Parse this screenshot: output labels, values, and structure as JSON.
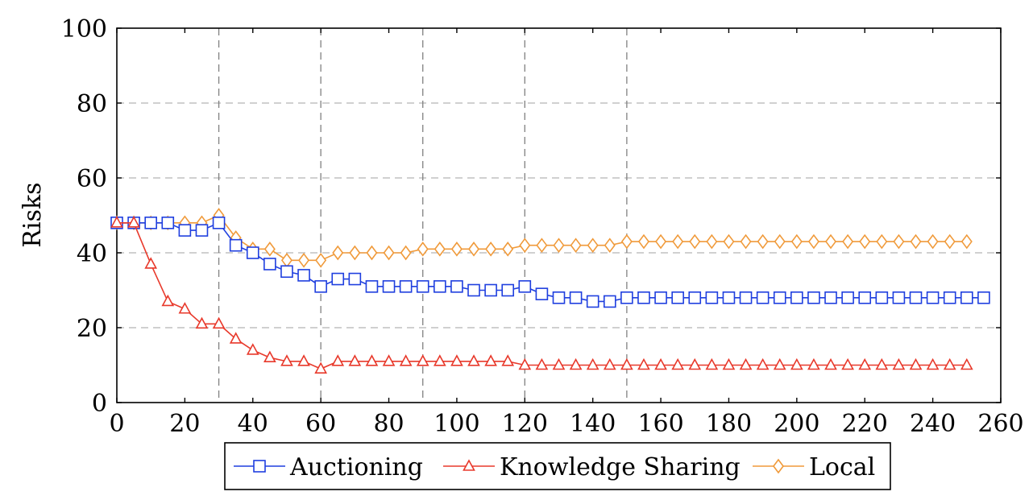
{
  "chart_data": {
    "type": "line",
    "title": "",
    "xlabel": "",
    "ylabel": "Risks",
    "xlim": [
      0,
      260
    ],
    "ylim": [
      0,
      100
    ],
    "xticks": [
      0,
      20,
      40,
      60,
      80,
      100,
      120,
      140,
      160,
      180,
      200,
      220,
      240,
      260
    ],
    "yticks": [
      0,
      20,
      40,
      60,
      80,
      100
    ],
    "grid": "dashed gray, horizontal at every y tick; vertical at x = 30, 60, 90, 120, 150",
    "vlines": [
      30,
      60,
      90,
      120,
      150
    ],
    "legend_position": "bottom-center, below plot",
    "series": [
      {
        "name": "Auctioning",
        "color": "#1f3fdf",
        "marker": "square",
        "x": [
          0,
          5,
          10,
          15,
          20,
          25,
          30,
          35,
          40,
          45,
          50,
          55,
          60,
          65,
          70,
          75,
          80,
          85,
          90,
          95,
          100,
          105,
          110,
          115,
          120,
          125,
          130,
          135,
          140,
          145,
          150,
          155,
          160,
          165,
          170,
          175,
          180,
          185,
          190,
          195,
          200,
          205,
          210,
          215,
          220,
          225,
          230,
          235,
          240,
          245,
          250,
          255
        ],
        "y": [
          48,
          48,
          48,
          48,
          46,
          46,
          48,
          42,
          40,
          37,
          35,
          34,
          31,
          33,
          33,
          31,
          31,
          31,
          31,
          31,
          31,
          30,
          30,
          30,
          31,
          29,
          28,
          28,
          27,
          27,
          28,
          28,
          28,
          28,
          28,
          28,
          28,
          28,
          28,
          28,
          28,
          28,
          28,
          28,
          28,
          28,
          28,
          28,
          28,
          28,
          28,
          28
        ]
      },
      {
        "name": "Knowledge Sharing",
        "color": "#e8392b",
        "marker": "triangle",
        "x": [
          0,
          5,
          10,
          15,
          20,
          25,
          30,
          35,
          40,
          45,
          50,
          55,
          60,
          65,
          70,
          75,
          80,
          85,
          90,
          95,
          100,
          105,
          110,
          115,
          120,
          125,
          130,
          135,
          140,
          145,
          150,
          155,
          160,
          165,
          170,
          175,
          180,
          185,
          190,
          195,
          200,
          205,
          210,
          215,
          220,
          225,
          230,
          235,
          240,
          245,
          250
        ],
        "y": [
          48,
          48,
          37,
          27,
          25,
          21,
          21,
          17,
          14,
          12,
          11,
          11,
          9,
          11,
          11,
          11,
          11,
          11,
          11,
          11,
          11,
          11,
          11,
          11,
          10,
          10,
          10,
          10,
          10,
          10,
          10,
          10,
          10,
          10,
          10,
          10,
          10,
          10,
          10,
          10,
          10,
          10,
          10,
          10,
          10,
          10,
          10,
          10,
          10,
          10,
          10
        ]
      },
      {
        "name": "Local",
        "color": "#f09a3a",
        "marker": "diamond",
        "x": [
          0,
          5,
          10,
          15,
          20,
          25,
          30,
          35,
          40,
          45,
          50,
          55,
          60,
          65,
          70,
          75,
          80,
          85,
          90,
          95,
          100,
          105,
          110,
          115,
          120,
          125,
          130,
          135,
          140,
          145,
          150,
          155,
          160,
          165,
          170,
          175,
          180,
          185,
          190,
          195,
          200,
          205,
          210,
          215,
          220,
          225,
          230,
          235,
          240,
          245,
          250
        ],
        "y": [
          48,
          48,
          48,
          48,
          48,
          48,
          50,
          44,
          41,
          41,
          38,
          38,
          38,
          40,
          40,
          40,
          40,
          40,
          41,
          41,
          41,
          41,
          41,
          41,
          42,
          42,
          42,
          42,
          42,
          42,
          43,
          43,
          43,
          43,
          43,
          43,
          43,
          43,
          43,
          43,
          43,
          43,
          43,
          43,
          43,
          43,
          43,
          43,
          43,
          43,
          43
        ]
      }
    ]
  }
}
